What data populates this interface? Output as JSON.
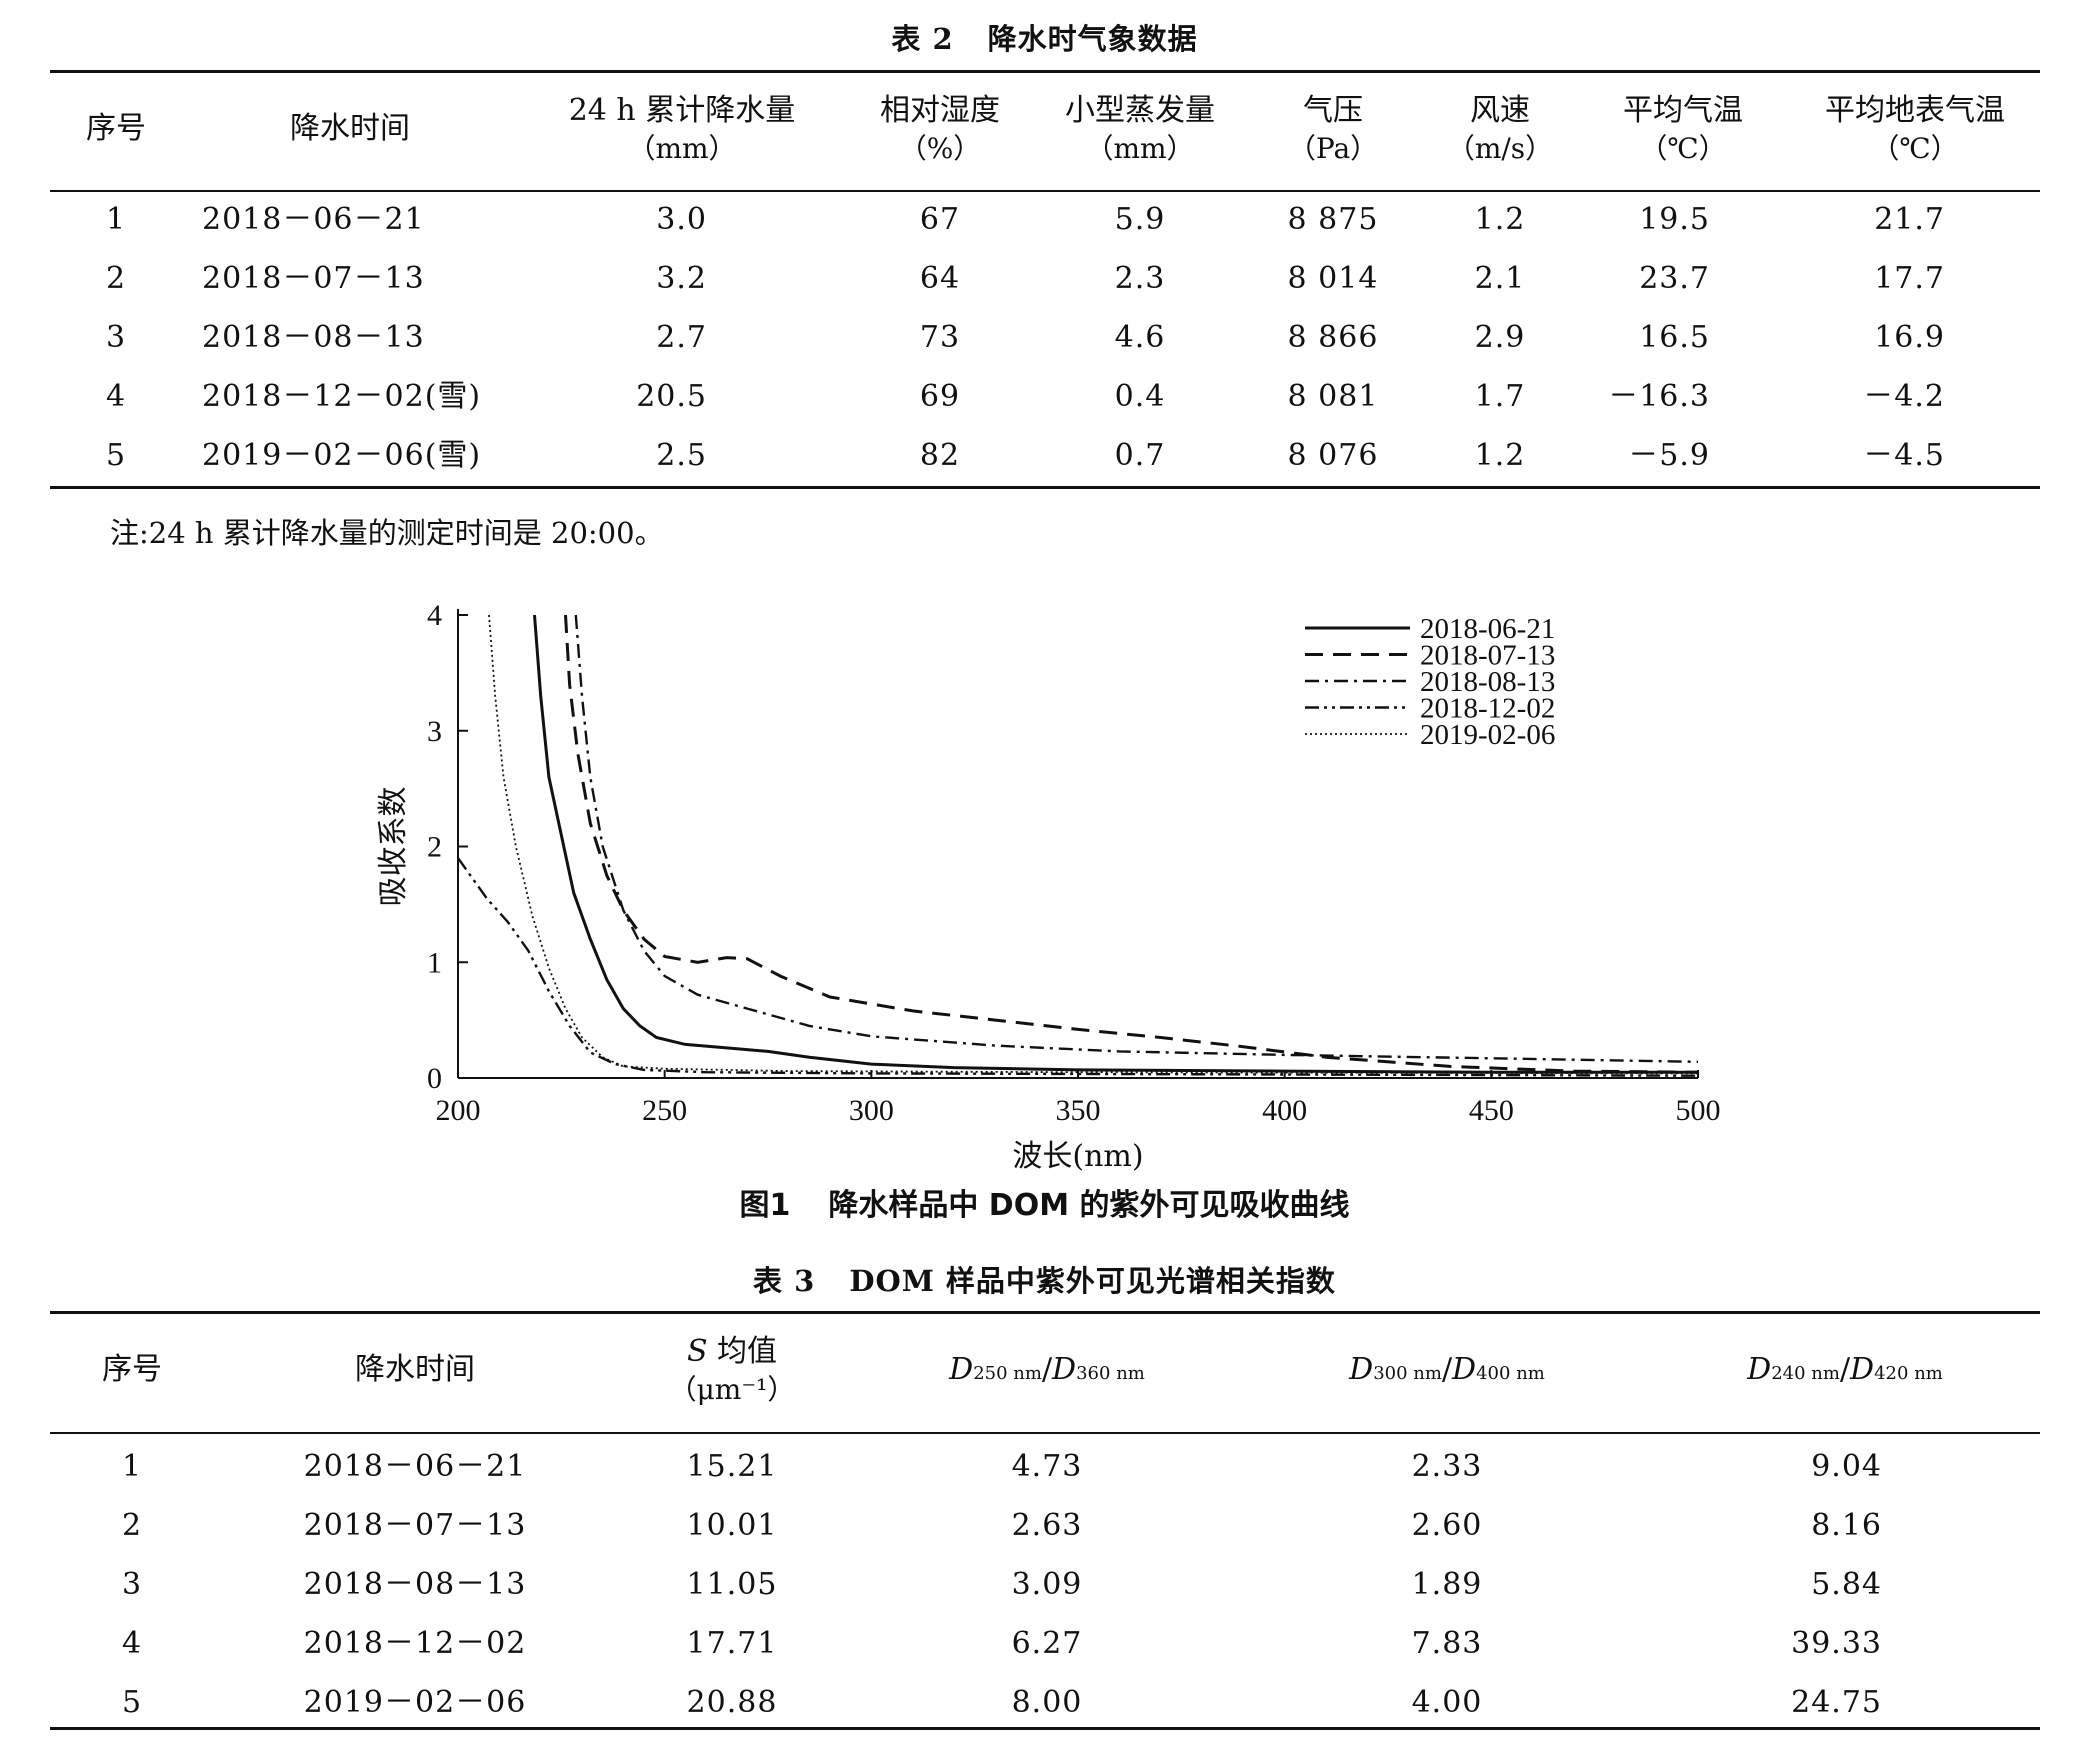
{
  "table2": {
    "number": "表 2",
    "title": "降水时气象数据",
    "headers": [
      {
        "label": "序号",
        "unit": ""
      },
      {
        "label": "降水时间",
        "unit": ""
      },
      {
        "label": "24 h 累计降水量",
        "unit": "（mm）"
      },
      {
        "label": "相对湿度",
        "unit": "（%）"
      },
      {
        "label": "小型蒸发量",
        "unit": "（mm）"
      },
      {
        "label": "气压",
        "unit": "（Pa）"
      },
      {
        "label": "风速",
        "unit": "（m/s）"
      },
      {
        "label": "平均气温",
        "unit": "（℃）"
      },
      {
        "label": "平均地表气温",
        "unit": "（℃）"
      }
    ],
    "rows": [
      [
        "1",
        "2018－06－21",
        "3.0",
        "67",
        "5.9",
        "8 875",
        "1.2",
        "19.5",
        "21.7"
      ],
      [
        "2",
        "2018－07－13",
        "3.2",
        "64",
        "2.3",
        "8 014",
        "2.1",
        "23.7",
        "17.7"
      ],
      [
        "3",
        "2018－08－13",
        "2.7",
        "73",
        "4.6",
        "8 866",
        "2.9",
        "16.5",
        "16.9"
      ],
      [
        "4",
        "2018－12－02(雪)",
        "20.5",
        "69",
        "0.4",
        "8 081",
        "1.7",
        "－16.3",
        "－4.2"
      ],
      [
        "5",
        "2019－02－06(雪)",
        "2.5",
        "82",
        "0.7",
        "8 076",
        "1.2",
        "－5.9",
        "－4.5"
      ]
    ],
    "note": "注:24 h 累计降水量的测定时间是 20:00。"
  },
  "figure1": {
    "number": "图1",
    "title": "降水样品中 DOM 的紫外可见吸收曲线"
  },
  "chart_data": {
    "type": "line",
    "xlabel": "波长(nm)",
    "ylabel": "吸收系数",
    "xlim": [
      200,
      500
    ],
    "ylim": [
      0,
      4
    ],
    "xticks": [
      200,
      250,
      300,
      350,
      400,
      450,
      500
    ],
    "yticks": [
      0,
      1,
      2,
      3,
      4
    ],
    "legend_position": "top-right",
    "series": [
      {
        "name": "2018-06-21",
        "dash": "solid",
        "points": [
          [
            218.5,
            4
          ],
          [
            220,
            3.3
          ],
          [
            222,
            2.6
          ],
          [
            225,
            2.1
          ],
          [
            228,
            1.6
          ],
          [
            232,
            1.2
          ],
          [
            236,
            0.85
          ],
          [
            240,
            0.6
          ],
          [
            244,
            0.45
          ],
          [
            248,
            0.35
          ],
          [
            255,
            0.29
          ],
          [
            265,
            0.26
          ],
          [
            275,
            0.23
          ],
          [
            285,
            0.18
          ],
          [
            300,
            0.12
          ],
          [
            320,
            0.09
          ],
          [
            350,
            0.07
          ],
          [
            400,
            0.06
          ],
          [
            450,
            0.05
          ],
          [
            500,
            0.05
          ]
        ]
      },
      {
        "name": "2018-07-13",
        "dash": "dashed",
        "points": [
          [
            226,
            4
          ],
          [
            227,
            3.4
          ],
          [
            229,
            2.8
          ],
          [
            232,
            2.2
          ],
          [
            236,
            1.75
          ],
          [
            240,
            1.45
          ],
          [
            245,
            1.2
          ],
          [
            250,
            1.05
          ],
          [
            258,
            1.0
          ],
          [
            265,
            1.04
          ],
          [
            270,
            1.03
          ],
          [
            278,
            0.88
          ],
          [
            290,
            0.7
          ],
          [
            310,
            0.58
          ],
          [
            330,
            0.5
          ],
          [
            350,
            0.42
          ],
          [
            370,
            0.35
          ],
          [
            390,
            0.27
          ],
          [
            410,
            0.18
          ],
          [
            440,
            0.1
          ],
          [
            470,
            0.06
          ],
          [
            500,
            0.05
          ]
        ]
      },
      {
        "name": "2018-08-13",
        "dash": "dashdot",
        "points": [
          [
            228.5,
            4
          ],
          [
            230,
            3.3
          ],
          [
            232,
            2.6
          ],
          [
            235,
            2.0
          ],
          [
            240,
            1.45
          ],
          [
            245,
            1.1
          ],
          [
            250,
            0.88
          ],
          [
            258,
            0.72
          ],
          [
            270,
            0.6
          ],
          [
            285,
            0.45
          ],
          [
            300,
            0.36
          ],
          [
            330,
            0.28
          ],
          [
            360,
            0.23
          ],
          [
            400,
            0.2
          ],
          [
            450,
            0.17
          ],
          [
            500,
            0.14
          ]
        ]
      },
      {
        "name": "2018-12-02",
        "dash": "dashdotdot",
        "points": [
          [
            200,
            1.9
          ],
          [
            203,
            1.75
          ],
          [
            207,
            1.55
          ],
          [
            212,
            1.35
          ],
          [
            217,
            1.1
          ],
          [
            222,
            0.75
          ],
          [
            227,
            0.45
          ],
          [
            232,
            0.22
          ],
          [
            238,
            0.12
          ],
          [
            245,
            0.07
          ],
          [
            260,
            0.05
          ],
          [
            300,
            0.04
          ],
          [
            400,
            0.03
          ],
          [
            500,
            0.02
          ]
        ]
      },
      {
        "name": "2019-02-06",
        "dash": "dotted",
        "points": [
          [
            207.5,
            4
          ],
          [
            209,
            3.3
          ],
          [
            211,
            2.6
          ],
          [
            214,
            2.0
          ],
          [
            218,
            1.4
          ],
          [
            222,
            0.95
          ],
          [
            226,
            0.6
          ],
          [
            230,
            0.35
          ],
          [
            235,
            0.18
          ],
          [
            240,
            0.1
          ],
          [
            250,
            0.08
          ],
          [
            280,
            0.06
          ],
          [
            350,
            0.05
          ],
          [
            500,
            0.04
          ]
        ]
      }
    ]
  },
  "table3": {
    "number": "表 3",
    "title": "DOM 样品中紫外可见光谱相关指数",
    "headers": [
      {
        "label": "序号",
        "unit": ""
      },
      {
        "label": "降水时间",
        "unit": ""
      },
      {
        "label": "S 均值",
        "unit": "（μm⁻¹）"
      },
      {
        "label": "D250 nm/D360 nm",
        "unit": ""
      },
      {
        "label": "D300 nm/D400 nm",
        "unit": ""
      },
      {
        "label": "D240 nm/D420 nm",
        "unit": ""
      }
    ],
    "rows": [
      [
        "1",
        "2018－06－21",
        "15.21",
        "4.73",
        "2.33",
        "9.04"
      ],
      [
        "2",
        "2018－07－13",
        "10.01",
        "2.63",
        "2.60",
        "8.16"
      ],
      [
        "3",
        "2018－08－13",
        "11.05",
        "3.09",
        "1.89",
        "5.84"
      ],
      [
        "4",
        "2018－12－02",
        "17.71",
        "6.27",
        "7.83",
        "39.33"
      ],
      [
        "5",
        "2019－02－06",
        "20.88",
        "8.00",
        "4.00",
        "24.75"
      ]
    ]
  }
}
